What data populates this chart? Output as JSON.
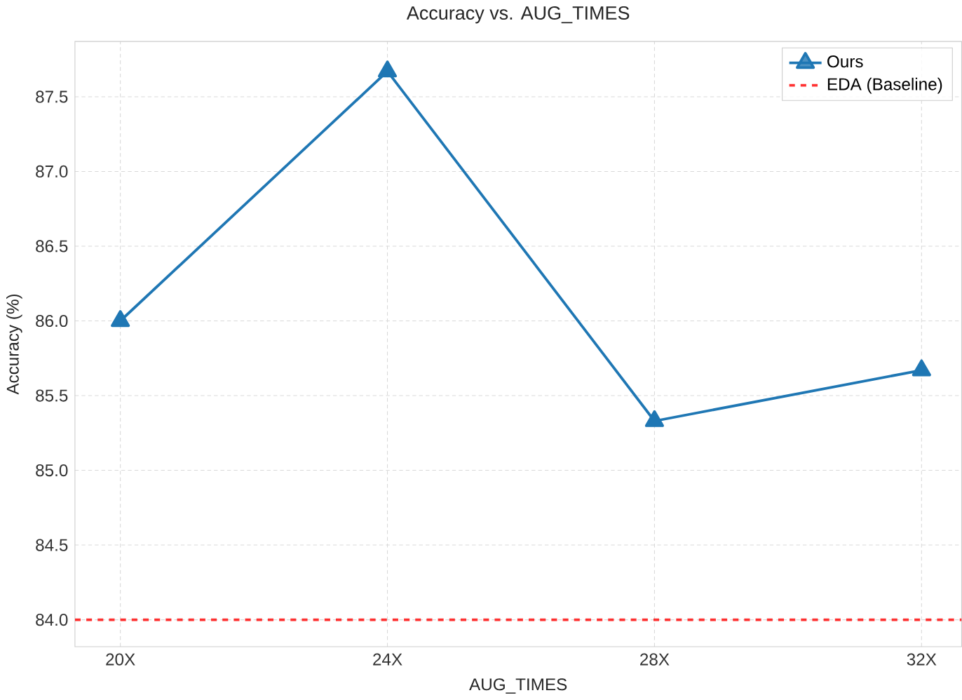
{
  "chart_data": {
    "type": "line",
    "title": "Accuracy vs. AUG_TIMES",
    "xlabel": "AUG_TIMES",
    "ylabel": "Accuracy (%)",
    "categories": [
      "20X",
      "24X",
      "28X",
      "32X"
    ],
    "series": [
      {
        "name": "Ours",
        "color": "#1f77b4",
        "values": [
          86.0,
          87.67,
          85.33,
          85.67
        ]
      }
    ],
    "ylim": [
      83.82,
      87.87
    ],
    "yticks": [
      {
        "value": 84.0,
        "label": "84.0"
      },
      {
        "value": 84.5,
        "label": "84.5"
      },
      {
        "value": 85.0,
        "label": "85.0"
      },
      {
        "value": 85.5,
        "label": "85.5"
      },
      {
        "value": 86.0,
        "label": "86.0"
      },
      {
        "value": 86.5,
        "label": "86.5"
      },
      {
        "value": 87.0,
        "label": "87.0"
      },
      {
        "value": 87.5,
        "label": "87.5"
      }
    ],
    "ref_lines": [
      {
        "axis": "y",
        "value": 84.0,
        "label": "EDA (Baseline)",
        "color": "#ff0000",
        "line_style": "dashed"
      }
    ],
    "grid": true,
    "legend": "top right",
    "marker": "triangle",
    "line_style": "solid"
  }
}
